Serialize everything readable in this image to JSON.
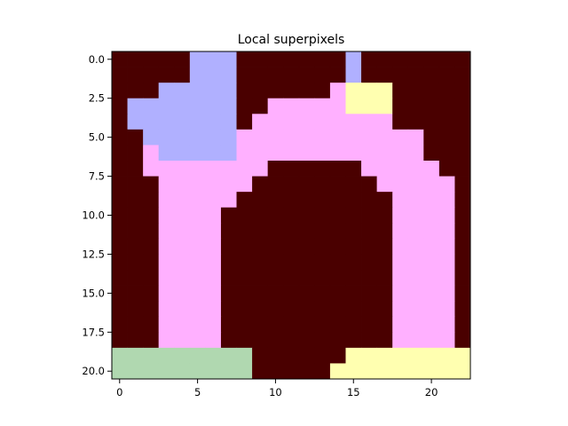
{
  "chart_data": {
    "type": "heatmap",
    "title": "Local superpixels",
    "xlabel": "",
    "ylabel": "",
    "grid": false,
    "legend": "none",
    "n_cols": 23,
    "n_rows": 21,
    "xlim": [
      -0.5,
      22.5
    ],
    "ylim": [
      20.5,
      -0.5
    ],
    "x_ticks": [
      0,
      5,
      10,
      15,
      20
    ],
    "y_ticks": [
      0.0,
      2.5,
      5.0,
      7.5,
      10.0,
      12.5,
      15.0,
      17.5,
      20.0
    ],
    "x_tick_labels": [
      "0",
      "5",
      "10",
      "15",
      "20"
    ],
    "y_tick_labels": [
      "0.0",
      "2.5",
      "5.0",
      "7.5",
      "10.0",
      "12.5",
      "15.0",
      "17.5",
      "20.0"
    ],
    "colors": {
      "0": "#4a0000",
      "1": "#ffb0ff",
      "2": "#b0b0ff",
      "3": "#ffffb0",
      "4": "#b0d8b0"
    },
    "grid_data": [
      "00000222000000020000000",
      "00000222000000020000000",
      "00022222000000133300000",
      "02222222001111133300000",
      "02222222011111111100000",
      "00222222111111111111000",
      "00122222111111111111000",
      "00111111110000001111100",
      "00011111100000000111110",
      "00011111000000000011110",
      "00011110000000000011110",
      "00011110000000000011110",
      "00011110000000000011110",
      "00011110000000000011110",
      "00011110000000000011110",
      "00011110000000000011110",
      "00011110000000000011110",
      "00011110000000000011110",
      "00011110000000000011110",
      "44444444400000033333333",
      "44444444400000333333333"
    ]
  }
}
